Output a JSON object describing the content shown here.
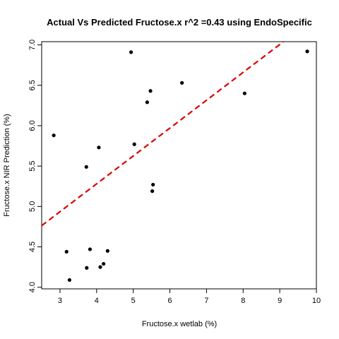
{
  "chart_data": {
    "type": "scatter",
    "title": "Actual Vs Predicted Fructose.x r^2 =0.43 using EndoSpecific",
    "xlabel": "Fructose.x wetlab (%)",
    "ylabel": "Fructose.x NIR Prediction (%)",
    "xlim": [
      2.5,
      10.0
    ],
    "ylim": [
      3.98,
      7.04
    ],
    "xticks": [
      "3",
      "4",
      "5",
      "6",
      "7",
      "8",
      "9",
      "10"
    ],
    "yticks": [
      "4.0",
      "4.5",
      "5.0",
      "5.5",
      "6.0",
      "6.5",
      "7.0"
    ],
    "grid": false,
    "points": [
      {
        "x": 2.83,
        "y": 5.88
      },
      {
        "x": 3.18,
        "y": 4.44
      },
      {
        "x": 3.26,
        "y": 4.09
      },
      {
        "x": 3.72,
        "y": 5.49
      },
      {
        "x": 3.73,
        "y": 4.24
      },
      {
        "x": 3.82,
        "y": 4.47
      },
      {
        "x": 4.06,
        "y": 5.73
      },
      {
        "x": 4.1,
        "y": 4.25
      },
      {
        "x": 4.19,
        "y": 4.29
      },
      {
        "x": 4.3,
        "y": 4.45
      },
      {
        "x": 4.94,
        "y": 6.91
      },
      {
        "x": 5.03,
        "y": 5.77
      },
      {
        "x": 5.38,
        "y": 6.29
      },
      {
        "x": 5.47,
        "y": 6.43
      },
      {
        "x": 5.52,
        "y": 5.19
      },
      {
        "x": 5.54,
        "y": 5.27
      },
      {
        "x": 6.33,
        "y": 6.53
      },
      {
        "x": 8.04,
        "y": 6.4
      },
      {
        "x": 9.75,
        "y": 6.92
      }
    ],
    "fit_line": {
      "style": "dashed",
      "color": "#dd0000",
      "intercept": 3.9,
      "slope": 0.345
    },
    "point_color": "#000000"
  }
}
